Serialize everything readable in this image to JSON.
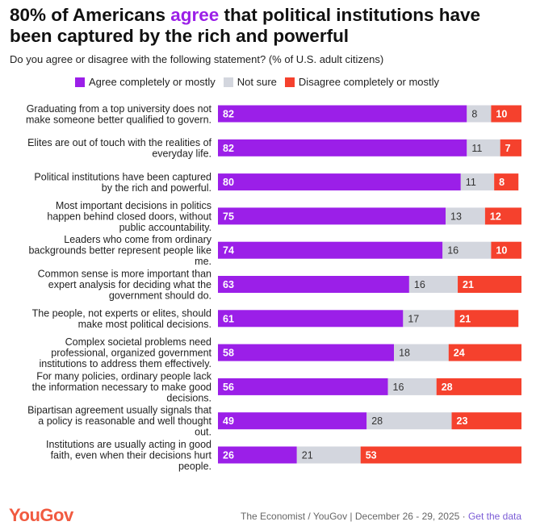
{
  "title": {
    "prefix": "80% of Americans ",
    "accent": "agree",
    "suffix": " that political institutions have been captured by the rich and powerful"
  },
  "subtitle": "Do you agree or disagree with the following statement? (% of U.S. adult citizens)",
  "colors": {
    "agree": "#9b1fe8",
    "not_sure": "#d3d6de",
    "disagree": "#f5412d",
    "accent": "#9b1fe8",
    "brand": "#f15a40"
  },
  "footer": {
    "logo": "YouGov",
    "source": "The Economist / YouGov | December 26 - 29, 2025 · ",
    "link": "Get the data"
  },
  "chart_data": {
    "type": "bar",
    "orientation": "horizontal",
    "stacked": true,
    "xlim": [
      0,
      100
    ],
    "legend": "top",
    "categories": [
      [
        "Graduating from a top university does not",
        "make someone better qualified to govern."
      ],
      [
        "Elites are out of touch with the realities of",
        "everyday life."
      ],
      [
        "Political institutions have been captured",
        "by the rich and powerful."
      ],
      [
        "Most important decisions in politics",
        "happen behind closed doors, without",
        "public accountability."
      ],
      [
        "Leaders who come from ordinary",
        "backgrounds better represent people like",
        "me."
      ],
      [
        "Common sense is more important than",
        "expert analysis for deciding what the",
        "government should do."
      ],
      [
        "The people, not experts or elites, should",
        "make most political decisions."
      ],
      [
        "Complex societal problems need",
        "professional, organized government",
        "institutions to address them effectively."
      ],
      [
        "For many policies, ordinary people lack",
        "the information necessary to make good",
        "decisions."
      ],
      [
        "Bipartisan agreement usually signals that",
        "a policy is reasonable and well thought",
        "out."
      ],
      [
        "Institutions are usually acting in good",
        "faith, even when their decisions hurt",
        "people."
      ]
    ],
    "series": [
      {
        "name": "Agree completely or mostly",
        "color_key": "agree",
        "values": [
          82,
          82,
          80,
          75,
          74,
          63,
          61,
          58,
          56,
          49,
          26
        ]
      },
      {
        "name": "Not sure",
        "color_key": "not_sure",
        "values": [
          8,
          11,
          11,
          13,
          16,
          16,
          17,
          18,
          16,
          28,
          21
        ]
      },
      {
        "name": "Disagree completely or mostly",
        "color_key": "disagree",
        "values": [
          10,
          7,
          8,
          12,
          10,
          21,
          21,
          24,
          28,
          23,
          53
        ]
      }
    ]
  }
}
